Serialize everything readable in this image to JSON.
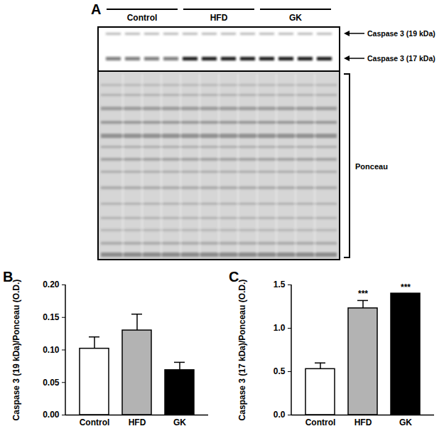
{
  "blot": {
    "panel": "A",
    "groups": [
      "Control",
      "HFD",
      "GK"
    ],
    "bands": [
      "Caspase 3 (19 kDa)",
      "Caspase 3 (17 kDa)"
    ],
    "loading_control": "Ponceau"
  },
  "chart_data": [
    {
      "panel": "B",
      "type": "bar",
      "categories": [
        "Control",
        "HFD",
        "GK"
      ],
      "values": [
        0.102,
        0.13,
        0.069
      ],
      "error": [
        0.018,
        0.025,
        0.012
      ],
      "colors": [
        "#ffffff",
        "#b3b3b3",
        "#000000"
      ],
      "y_label": "Caspase 3 (19 kDa)/Ponceau (O.D.)",
      "ylim": [
        0,
        0.2
      ],
      "yticks": [
        {
          "value": 0,
          "label": "0.00"
        },
        {
          "value": 0.05,
          "label": "0.05"
        },
        {
          "value": 0.1,
          "label": "0.10"
        },
        {
          "value": 0.15,
          "label": "0.15"
        },
        {
          "value": 0.2,
          "label": "0.20"
        }
      ]
    },
    {
      "panel": "C",
      "type": "bar",
      "categories": [
        "Control",
        "HFD",
        "GK"
      ],
      "values": [
        0.53,
        1.23,
        1.4
      ],
      "error": [
        0.07,
        0.09,
        0
      ],
      "colors": [
        "#ffffff",
        "#b3b3b3",
        "#000000"
      ],
      "annotations": [
        null,
        "***",
        "***"
      ],
      "y_label": "Caspase 3 (17 kDa)/Ponceau (O.D.)",
      "ylim": [
        0,
        1.5
      ],
      "yticks": [
        {
          "value": 0,
          "label": "0.0"
        },
        {
          "value": 0.5,
          "label": "0.5"
        },
        {
          "value": 1,
          "label": "1.0"
        },
        {
          "value": 1.5,
          "label": "1.5"
        }
      ]
    }
  ]
}
